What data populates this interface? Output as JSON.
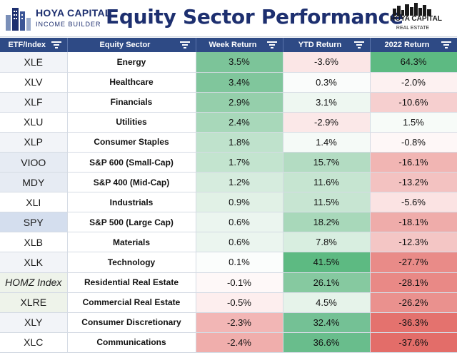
{
  "header": {
    "title": "Equity Sector Performance",
    "left_logo_line1": "HOYA CAPITAL",
    "left_logo_line2": "INCOME BUILDER",
    "right_logo_line1": "HOYA CAPITAL",
    "right_logo_line2": "REAL ESTATE",
    "title_color": "#1d2f6f"
  },
  "table": {
    "columns": [
      "ETF/Index",
      "Equity Sector",
      "Week Return",
      "YTD Return",
      "2022 Return"
    ],
    "header_bg": "#2e4a85",
    "rows": [
      {
        "etf": "XLE",
        "sector": "Energy",
        "week": "3.5%",
        "ytd": "-3.6%",
        "y2022": "64.3%",
        "etf_bg": "#f2f4f8",
        "week_bg": "#7cc499",
        "ytd_bg": "#fbe6e6",
        "y2022_bg": "#5dba82"
      },
      {
        "etf": "XLV",
        "sector": "Healthcare",
        "week": "3.4%",
        "ytd": "0.3%",
        "y2022": "-2.0%",
        "etf_bg": "#ffffff",
        "week_bg": "#80c69c",
        "ytd_bg": "#fafcfb",
        "y2022_bg": "#fdf1f1"
      },
      {
        "etf": "XLF",
        "sector": "Financials",
        "week": "2.9%",
        "ytd": "3.1%",
        "y2022": "-10.6%",
        "etf_bg": "#f2f4f8",
        "week_bg": "#95cfab",
        "ytd_bg": "#eef7f1",
        "y2022_bg": "#f6cfcf"
      },
      {
        "etf": "XLU",
        "sector": "Utilities",
        "week": "2.4%",
        "ytd": "-2.9%",
        "y2022": "1.5%",
        "etf_bg": "#ffffff",
        "week_bg": "#a8d8ba",
        "ytd_bg": "#fbe8e8",
        "y2022_bg": "#f7fbf8"
      },
      {
        "etf": "XLP",
        "sector": "Consumer Staples",
        "week": "1.8%",
        "ytd": "1.4%",
        "y2022": "-0.8%",
        "etf_bg": "#f2f4f8",
        "week_bg": "#bfe2cc",
        "ytd_bg": "#f5faf7",
        "y2022_bg": "#fef7f7"
      },
      {
        "etf": "VIOO",
        "sector": "S&P 600 (Small-Cap)",
        "week": "1.7%",
        "ytd": "15.7%",
        "y2022": "-16.1%",
        "etf_bg": "#e6ebf3",
        "week_bg": "#c3e4cf",
        "ytd_bg": "#b3dcc2",
        "y2022_bg": "#f1b5b3"
      },
      {
        "etf": "MDY",
        "sector": "S&P 400 (Mid-Cap)",
        "week": "1.2%",
        "ytd": "11.6%",
        "y2022": "-13.2%",
        "etf_bg": "#e6ebf3",
        "week_bg": "#d6ecde",
        "ytd_bg": "#c6e5d1",
        "y2022_bg": "#f3c2c1"
      },
      {
        "etf": "XLI",
        "sector": "Industrials",
        "week": "0.9%",
        "ytd": "11.5%",
        "y2022": "-5.6%",
        "etf_bg": "#ffffff",
        "week_bg": "#e1f1e6",
        "ytd_bg": "#c7e5d2",
        "y2022_bg": "#fbe3e3"
      },
      {
        "etf": "SPY",
        "sector": "S&P 500 (Large Cap)",
        "week": "0.6%",
        "ytd": "18.2%",
        "y2022": "-18.1%",
        "etf_bg": "#d4deee",
        "week_bg": "#ebf5ef",
        "ytd_bg": "#a8d8ba",
        "y2022_bg": "#efacaa"
      },
      {
        "etf": "XLB",
        "sector": "Materials",
        "week": "0.6%",
        "ytd": "7.8%",
        "y2022": "-12.3%",
        "etf_bg": "#ffffff",
        "week_bg": "#ebf5ef",
        "ytd_bg": "#d8eee0",
        "y2022_bg": "#f4c6c5"
      },
      {
        "etf": "XLK",
        "sector": "Technology",
        "week": "0.1%",
        "ytd": "41.5%",
        "y2022": "-27.7%",
        "etf_bg": "#f2f4f8",
        "week_bg": "#fbfdfc",
        "ytd_bg": "#5dba82",
        "y2022_bg": "#e98b88"
      },
      {
        "etf": "HOMZ Index",
        "sector": "Residential Real Estate",
        "week": "-0.1%",
        "ytd": "26.1%",
        "y2022": "-28.1%",
        "etf_bg": "#eef3ea",
        "week_bg": "#fef8f8",
        "ytd_bg": "#86c9a0",
        "y2022_bg": "#e98986"
      },
      {
        "etf": "XLRE",
        "sector": "Commercial Real Estate",
        "week": "-0.5%",
        "ytd": "4.5%",
        "y2022": "-26.2%",
        "etf_bg": "#eef3ea",
        "week_bg": "#fdeeee",
        "ytd_bg": "#e6f3ea",
        "y2022_bg": "#ea918e"
      },
      {
        "etf": "XLY",
        "sector": "Consumer Discretionary",
        "week": "-2.3%",
        "ytd": "32.4%",
        "y2022": "-36.3%",
        "etf_bg": "#f2f4f8",
        "week_bg": "#f2b6b5",
        "ytd_bg": "#74c195",
        "y2022_bg": "#e4726e"
      },
      {
        "etf": "XLC",
        "sector": "Communications",
        "week": "-2.4%",
        "ytd": "36.6%",
        "y2022": "-37.6%",
        "etf_bg": "#ffffff",
        "week_bg": "#f0aeac",
        "ytd_bg": "#69bd8c",
        "y2022_bg": "#e36d69"
      }
    ]
  }
}
